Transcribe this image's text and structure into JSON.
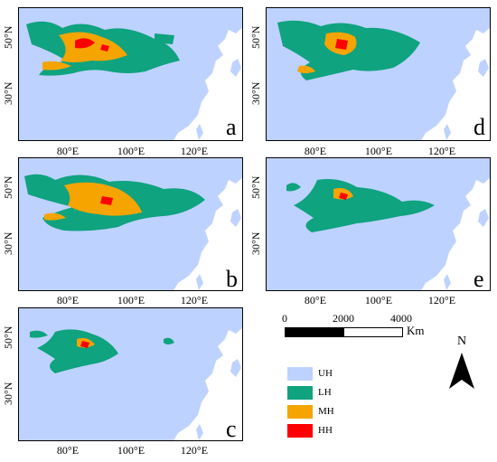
{
  "panels": [
    {
      "letter": "a",
      "lat_labels": [
        "50°N",
        "30°N"
      ],
      "lon_labels": [
        "80°E",
        "100°E",
        "120°E"
      ]
    },
    {
      "letter": "d",
      "lat_labels": [
        "50°N",
        "30°N"
      ],
      "lon_labels": [
        "80°E",
        "100°E",
        "120°E"
      ]
    },
    {
      "letter": "b",
      "lat_labels": [
        "50°N",
        "30°N"
      ],
      "lon_labels": [
        "80°E",
        "100°E",
        "120°E"
      ]
    },
    {
      "letter": "e",
      "lat_labels": [
        "50°N",
        "30°N"
      ],
      "lon_labels": [
        "80°E",
        "100°E",
        "120°E"
      ]
    },
    {
      "letter": "c",
      "lat_labels": [
        "50°N",
        "30°N"
      ],
      "lon_labels": [
        "80°E",
        "100°E",
        "120°E"
      ]
    }
  ],
  "scale_bar": {
    "ticks": [
      "0",
      "2000",
      "4000"
    ],
    "unit": "Km"
  },
  "north_arrow": {
    "label": "N"
  },
  "legend": [
    {
      "label": "UH",
      "color": "#bed2ff"
    },
    {
      "label": "LH",
      "color": "#0fa37f"
    },
    {
      "label": "MH",
      "color": "#f5a400"
    },
    {
      "label": "HH",
      "color": "#ff0000"
    }
  ],
  "colors": {
    "ocean": "#ffffff",
    "land": "#bed2ff",
    "lh": "#0fa37f",
    "mh": "#f5a400",
    "hh": "#ff0000"
  }
}
